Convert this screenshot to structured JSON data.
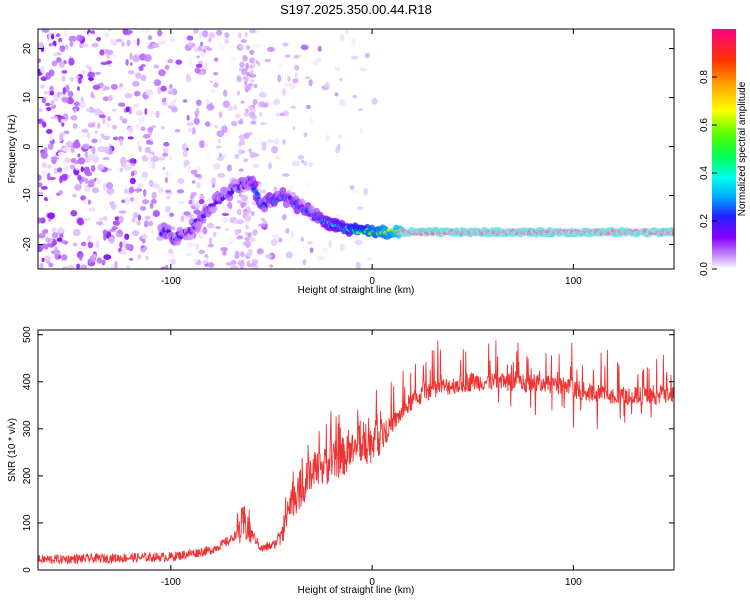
{
  "title": "S197.2025.350.00.44.R18",
  "chart_data": [
    {
      "type": "heatmap",
      "title": "S197.2025.350.00.44.R18",
      "xlabel": "Height of straight line (km)",
      "ylabel": "Frequency (Hz)",
      "xlim": [
        -166,
        150
      ],
      "ylim": [
        -25,
        24
      ],
      "xticks": [
        -100,
        0,
        100
      ],
      "yticks": [
        -20,
        -10,
        0,
        10,
        20
      ],
      "colorbar": {
        "label": "Normalized spectral amplitude",
        "range": [
          0,
          1
        ],
        "ticks": [
          0.0,
          0.2,
          0.4,
          0.6,
          0.8
        ],
        "colors": [
          "#ffffff",
          "#cc99ff",
          "#8800ff",
          "#2222ff",
          "#00aaff",
          "#00ffee",
          "#00ff55",
          "#55ff00",
          "#ffff00",
          "#ffaa00",
          "#ff3300",
          "#ff0088"
        ]
      },
      "ridge": [
        {
          "x": -100,
          "y": -19
        },
        {
          "x": -90,
          "y": -17
        },
        {
          "x": -80,
          "y": -12
        },
        {
          "x": -70,
          "y": -9
        },
        {
          "x": -60,
          "y": -7
        },
        {
          "x": -55,
          "y": -12
        },
        {
          "x": -45,
          "y": -10
        },
        {
          "x": -40,
          "y": -11
        },
        {
          "x": -30,
          "y": -14
        },
        {
          "x": -20,
          "y": -16
        },
        {
          "x": -10,
          "y": -17
        },
        {
          "x": 0,
          "y": -17.5
        },
        {
          "x": 15,
          "y": -17.5
        },
        {
          "x": 150,
          "y": -17.5
        }
      ]
    },
    {
      "type": "line",
      "xlabel": "Height of straight line (km)",
      "ylabel": "SNR (10 * v/v)",
      "xlim": [
        -166,
        150
      ],
      "ylim": [
        0,
        510
      ],
      "xticks": [
        -100,
        0,
        100
      ],
      "yticks": [
        0,
        100,
        200,
        300,
        400,
        500
      ],
      "color": "#ee3333",
      "trend": {
        "x": [
          -166,
          -100,
          -80,
          -70,
          -63,
          -55,
          -48,
          -40,
          -30,
          -20,
          -10,
          0,
          10,
          20,
          30,
          50,
          70,
          90,
          110,
          130,
          150
        ],
        "y": [
          22,
          28,
          42,
          65,
          100,
          45,
          55,
          150,
          200,
          230,
          250,
          270,
          310,
          360,
          385,
          400,
          400,
          395,
          375,
          370,
          370
        ]
      }
    }
  ]
}
